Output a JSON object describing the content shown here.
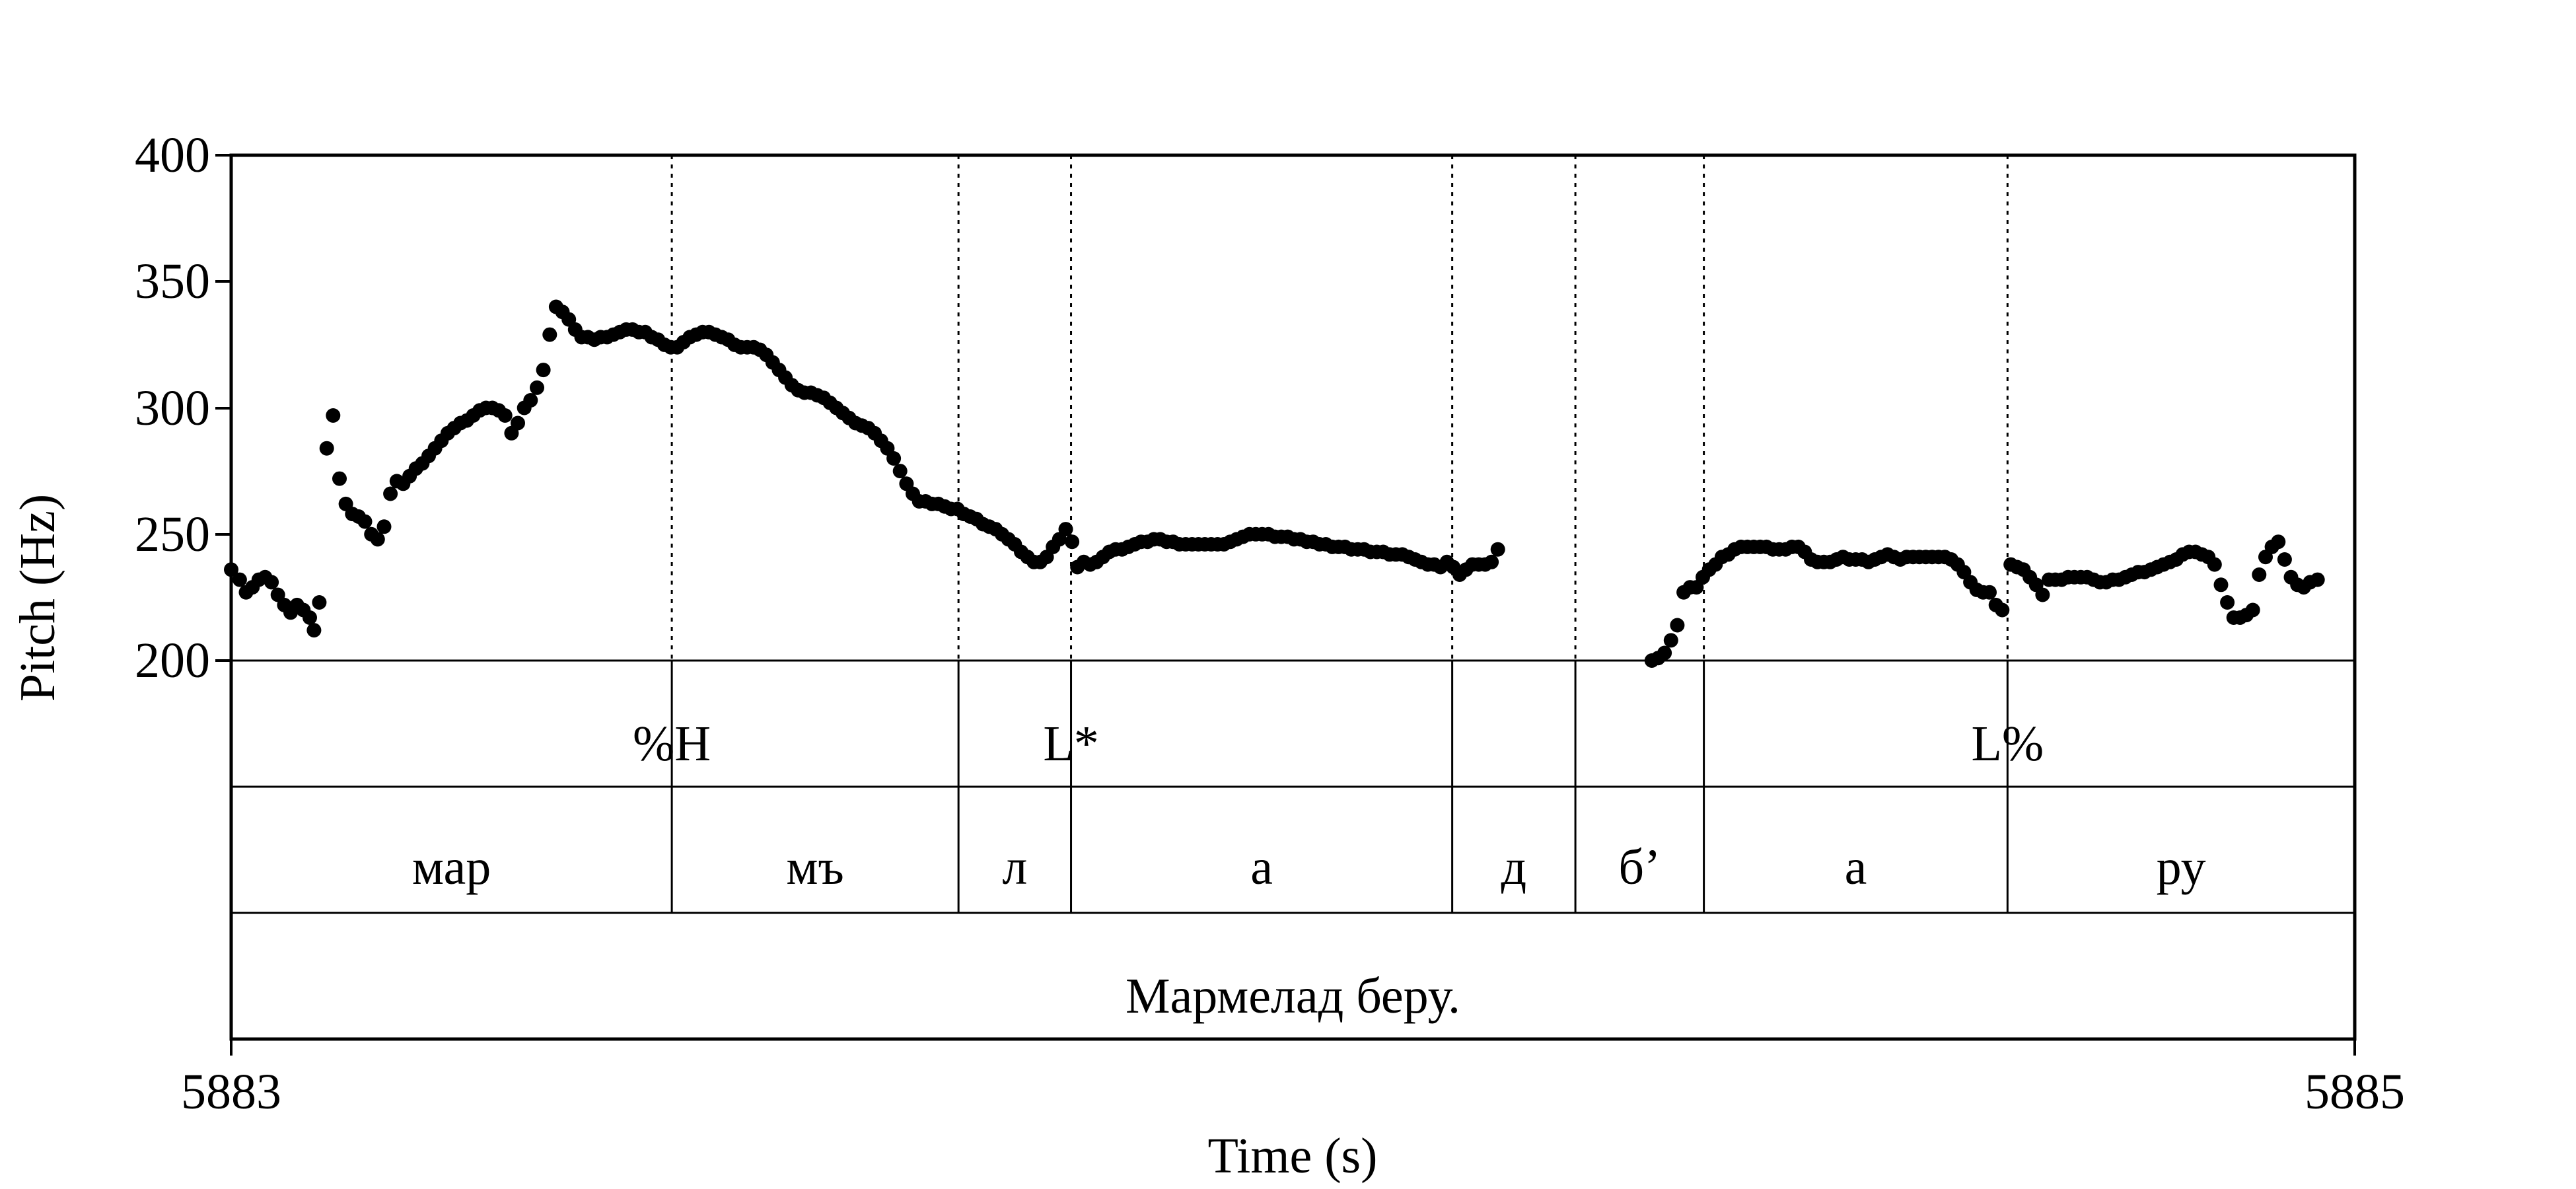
{
  "chart_data": {
    "type": "scatter",
    "xlabel": "Time (s)",
    "ylabel": "Pitch (Hz)",
    "xlim": [
      5883,
      5885
    ],
    "ylim": [
      200,
      400
    ],
    "x_tick_labels": [
      "5883",
      "5885"
    ],
    "y_tick_labels": [
      "200",
      "250",
      "300",
      "350",
      "400"
    ],
    "grid": false,
    "legend": "none",
    "tone_tier": [
      {
        "time": 5883.415,
        "label": "%H"
      },
      {
        "time": 5883.791,
        "label": "L*"
      },
      {
        "time": 5884.673,
        "label": "L%"
      }
    ],
    "boundaries": [
      5883.415,
      5883.685,
      5883.791,
      5884.15,
      5884.266,
      5884.387,
      5884.673
    ],
    "syllable_tier": [
      {
        "start": 5883.0,
        "end": 5883.415,
        "label": "мар"
      },
      {
        "start": 5883.415,
        "end": 5883.685,
        "label": "мъ"
      },
      {
        "start": 5883.685,
        "end": 5883.791,
        "label": "л"
      },
      {
        "start": 5883.791,
        "end": 5884.15,
        "label": "а"
      },
      {
        "start": 5884.15,
        "end": 5884.266,
        "label": "д"
      },
      {
        "start": 5884.266,
        "end": 5884.387,
        "label": "б’"
      },
      {
        "start": 5884.387,
        "end": 5884.673,
        "label": "а"
      },
      {
        "start": 5884.673,
        "end": 5885.0,
        "label": "ру"
      }
    ],
    "sentence_tier": {
      "start": 5883.0,
      "end": 5885.0,
      "label": "Мармелад беру."
    },
    "pitch_segments": [
      [
        [
          5883.0,
          236
        ],
        [
          5883.008,
          232
        ],
        [
          5883.014,
          227
        ],
        [
          5883.02,
          229
        ],
        [
          5883.026,
          232
        ],
        [
          5883.032,
          233
        ],
        [
          5883.038,
          231
        ],
        [
          5883.044,
          226
        ],
        [
          5883.05,
          222
        ],
        [
          5883.056,
          219
        ],
        [
          5883.062,
          222
        ],
        [
          5883.068,
          220
        ],
        [
          5883.074,
          217
        ],
        [
          5883.078,
          212
        ],
        [
          5883.083,
          223
        ]
      ],
      [
        [
          5883.09,
          284
        ],
        [
          5883.096,
          297
        ],
        [
          5883.102,
          272
        ],
        [
          5883.108,
          262
        ],
        [
          5883.114,
          258
        ],
        [
          5883.12,
          257
        ],
        [
          5883.126,
          255
        ],
        [
          5883.132,
          250
        ],
        [
          5883.138,
          248
        ],
        [
          5883.144,
          253
        ],
        [
          5883.15,
          266
        ],
        [
          5883.156,
          271
        ],
        [
          5883.162,
          270
        ],
        [
          5883.168,
          273
        ],
        [
          5883.174,
          276
        ],
        [
          5883.18,
          278
        ],
        [
          5883.186,
          281
        ],
        [
          5883.192,
          284
        ],
        [
          5883.198,
          287
        ],
        [
          5883.204,
          290
        ],
        [
          5883.21,
          292
        ],
        [
          5883.216,
          294
        ],
        [
          5883.222,
          295
        ],
        [
          5883.228,
          297
        ],
        [
          5883.234,
          299
        ],
        [
          5883.24,
          300
        ],
        [
          5883.246,
          300
        ],
        [
          5883.252,
          299
        ],
        [
          5883.258,
          297
        ],
        [
          5883.264,
          290
        ],
        [
          5883.27,
          294
        ],
        [
          5883.276,
          300
        ],
        [
          5883.282,
          303
        ],
        [
          5883.288,
          308
        ],
        [
          5883.294,
          315
        ],
        [
          5883.3,
          329
        ],
        [
          5883.306,
          340
        ],
        [
          5883.312,
          338
        ],
        [
          5883.318,
          335
        ],
        [
          5883.324,
          331
        ],
        [
          5883.33,
          328
        ],
        [
          5883.336,
          328
        ],
        [
          5883.342,
          327
        ],
        [
          5883.348,
          328
        ],
        [
          5883.354,
          328
        ],
        [
          5883.36,
          329
        ],
        [
          5883.366,
          330
        ],
        [
          5883.372,
          331
        ],
        [
          5883.378,
          331
        ],
        [
          5883.384,
          330
        ],
        [
          5883.39,
          330
        ],
        [
          5883.396,
          328
        ],
        [
          5883.402,
          327
        ],
        [
          5883.408,
          325
        ],
        [
          5883.414,
          324
        ],
        [
          5883.42,
          324
        ],
        [
          5883.426,
          326
        ],
        [
          5883.432,
          328
        ],
        [
          5883.438,
          329
        ],
        [
          5883.444,
          330
        ],
        [
          5883.45,
          330
        ],
        [
          5883.456,
          329
        ],
        [
          5883.462,
          328
        ],
        [
          5883.468,
          327
        ],
        [
          5883.474,
          325
        ],
        [
          5883.48,
          324
        ],
        [
          5883.486,
          324
        ],
        [
          5883.492,
          324
        ],
        [
          5883.498,
          323
        ],
        [
          5883.504,
          321
        ],
        [
          5883.51,
          318
        ],
        [
          5883.516,
          315
        ],
        [
          5883.522,
          312
        ],
        [
          5883.528,
          309
        ],
        [
          5883.534,
          307
        ],
        [
          5883.54,
          306
        ],
        [
          5883.546,
          306
        ],
        [
          5883.552,
          305
        ],
        [
          5883.558,
          304
        ],
        [
          5883.564,
          302
        ],
        [
          5883.57,
          300
        ],
        [
          5883.576,
          298
        ],
        [
          5883.582,
          296
        ],
        [
          5883.588,
          294
        ],
        [
          5883.594,
          293
        ],
        [
          5883.6,
          292
        ],
        [
          5883.606,
          290
        ],
        [
          5883.612,
          287
        ],
        [
          5883.618,
          284
        ],
        [
          5883.624,
          280
        ],
        [
          5883.63,
          275
        ],
        [
          5883.636,
          270
        ],
        [
          5883.642,
          266
        ],
        [
          5883.648,
          263
        ],
        [
          5883.654,
          263
        ],
        [
          5883.66,
          262
        ],
        [
          5883.666,
          262
        ],
        [
          5883.672,
          261
        ],
        [
          5883.678,
          260
        ],
        [
          5883.684,
          260
        ],
        [
          5883.69,
          258
        ],
        [
          5883.696,
          257
        ],
        [
          5883.702,
          256
        ],
        [
          5883.708,
          254
        ],
        [
          5883.714,
          253
        ],
        [
          5883.72,
          252
        ],
        [
          5883.726,
          250
        ],
        [
          5883.732,
          248
        ],
        [
          5883.738,
          246
        ],
        [
          5883.744,
          243
        ],
        [
          5883.75,
          241
        ],
        [
          5883.756,
          239
        ],
        [
          5883.762,
          239
        ],
        [
          5883.768,
          241
        ],
        [
          5883.774,
          245
        ],
        [
          5883.78,
          248
        ],
        [
          5883.786,
          252
        ],
        [
          5883.792,
          247
        ]
      ],
      [
        [
          5883.797,
          237
        ],
        [
          5883.803,
          239
        ],
        [
          5883.809,
          238
        ],
        [
          5883.815,
          239
        ],
        [
          5883.821,
          241
        ],
        [
          5883.827,
          243
        ],
        [
          5883.833,
          244
        ],
        [
          5883.839,
          244
        ],
        [
          5883.845,
          245
        ],
        [
          5883.851,
          246
        ],
        [
          5883.857,
          247
        ],
        [
          5883.863,
          247
        ],
        [
          5883.869,
          248
        ],
        [
          5883.875,
          248
        ],
        [
          5883.881,
          247
        ],
        [
          5883.887,
          247
        ],
        [
          5883.893,
          246
        ],
        [
          5883.899,
          246
        ],
        [
          5883.905,
          246
        ],
        [
          5883.911,
          246
        ],
        [
          5883.917,
          246
        ],
        [
          5883.923,
          246
        ],
        [
          5883.929,
          246
        ],
        [
          5883.935,
          246
        ],
        [
          5883.941,
          247
        ],
        [
          5883.947,
          248
        ],
        [
          5883.953,
          249
        ],
        [
          5883.959,
          250
        ],
        [
          5883.965,
          250
        ],
        [
          5883.971,
          250
        ],
        [
          5883.977,
          250
        ],
        [
          5883.983,
          249
        ],
        [
          5883.989,
          249
        ],
        [
          5883.995,
          249
        ],
        [
          5884.001,
          248
        ],
        [
          5884.007,
          248
        ],
        [
          5884.013,
          247
        ],
        [
          5884.019,
          247
        ],
        [
          5884.025,
          246
        ],
        [
          5884.031,
          246
        ],
        [
          5884.037,
          245
        ],
        [
          5884.043,
          245
        ],
        [
          5884.049,
          245
        ],
        [
          5884.055,
          244
        ],
        [
          5884.061,
          244
        ],
        [
          5884.067,
          244
        ],
        [
          5884.073,
          243
        ],
        [
          5884.079,
          243
        ],
        [
          5884.085,
          243
        ],
        [
          5884.091,
          242
        ],
        [
          5884.097,
          242
        ],
        [
          5884.103,
          242
        ],
        [
          5884.109,
          241
        ],
        [
          5884.115,
          240
        ],
        [
          5884.121,
          239
        ],
        [
          5884.127,
          238
        ],
        [
          5884.133,
          238
        ],
        [
          5884.139,
          237
        ],
        [
          5884.145,
          239
        ],
        [
          5884.151,
          237
        ],
        [
          5884.157,
          234
        ],
        [
          5884.163,
          236
        ],
        [
          5884.169,
          238
        ],
        [
          5884.175,
          238
        ],
        [
          5884.181,
          238
        ],
        [
          5884.187,
          239
        ],
        [
          5884.193,
          244
        ]
      ],
      [
        [
          5884.338,
          200
        ],
        [
          5884.344,
          201
        ],
        [
          5884.35,
          203
        ],
        [
          5884.356,
          208
        ],
        [
          5884.362,
          214
        ],
        [
          5884.368,
          227
        ],
        [
          5884.374,
          229
        ],
        [
          5884.38,
          229
        ],
        [
          5884.386,
          233
        ],
        [
          5884.392,
          236
        ],
        [
          5884.398,
          238
        ],
        [
          5884.404,
          241
        ],
        [
          5884.41,
          242
        ],
        [
          5884.416,
          244
        ],
        [
          5884.422,
          245
        ],
        [
          5884.428,
          245
        ],
        [
          5884.434,
          245
        ],
        [
          5884.44,
          245
        ],
        [
          5884.446,
          245
        ],
        [
          5884.452,
          244
        ],
        [
          5884.458,
          244
        ],
        [
          5884.464,
          244
        ],
        [
          5884.47,
          245
        ],
        [
          5884.476,
          245
        ],
        [
          5884.482,
          243
        ],
        [
          5884.488,
          240
        ],
        [
          5884.494,
          239
        ],
        [
          5884.5,
          239
        ],
        [
          5884.506,
          239
        ],
        [
          5884.512,
          240
        ],
        [
          5884.518,
          241
        ],
        [
          5884.524,
          240
        ],
        [
          5884.53,
          240
        ],
        [
          5884.536,
          240
        ],
        [
          5884.542,
          239
        ],
        [
          5884.548,
          240
        ],
        [
          5884.554,
          241
        ],
        [
          5884.56,
          242
        ],
        [
          5884.566,
          241
        ],
        [
          5884.572,
          240
        ],
        [
          5884.578,
          241
        ],
        [
          5884.584,
          241
        ],
        [
          5884.59,
          241
        ],
        [
          5884.596,
          241
        ],
        [
          5884.602,
          241
        ],
        [
          5884.608,
          241
        ],
        [
          5884.614,
          241
        ],
        [
          5884.62,
          240
        ],
        [
          5884.626,
          238
        ],
        [
          5884.632,
          235
        ],
        [
          5884.638,
          231
        ],
        [
          5884.644,
          228
        ],
        [
          5884.65,
          227
        ],
        [
          5884.656,
          227
        ],
        [
          5884.662,
          222
        ],
        [
          5884.668,
          220
        ]
      ],
      [
        [
          5884.676,
          238
        ],
        [
          5884.682,
          237
        ],
        [
          5884.688,
          236
        ],
        [
          5884.694,
          233
        ],
        [
          5884.7,
          230
        ],
        [
          5884.706,
          226
        ],
        [
          5884.712,
          232
        ],
        [
          5884.718,
          232
        ],
        [
          5884.724,
          232
        ],
        [
          5884.73,
          233
        ],
        [
          5884.736,
          233
        ],
        [
          5884.742,
          233
        ],
        [
          5884.748,
          233
        ],
        [
          5884.754,
          232
        ],
        [
          5884.76,
          231
        ],
        [
          5884.766,
          231
        ],
        [
          5884.772,
          232
        ],
        [
          5884.778,
          232
        ],
        [
          5884.784,
          233
        ],
        [
          5884.79,
          234
        ],
        [
          5884.796,
          235
        ],
        [
          5884.802,
          235
        ],
        [
          5884.808,
          236
        ],
        [
          5884.814,
          237
        ],
        [
          5884.82,
          238
        ],
        [
          5884.826,
          239
        ],
        [
          5884.832,
          240
        ],
        [
          5884.838,
          242
        ],
        [
          5884.844,
          243
        ],
        [
          5884.85,
          243
        ],
        [
          5884.856,
          242
        ],
        [
          5884.862,
          241
        ],
        [
          5884.868,
          238
        ],
        [
          5884.874,
          230
        ],
        [
          5884.88,
          223
        ],
        [
          5884.886,
          217
        ],
        [
          5884.892,
          217
        ],
        [
          5884.898,
          218
        ],
        [
          5884.904,
          220
        ],
        [
          5884.91,
          234
        ],
        [
          5884.916,
          241
        ],
        [
          5884.922,
          245
        ],
        [
          5884.928,
          247
        ],
        [
          5884.934,
          240
        ],
        [
          5884.94,
          233
        ],
        [
          5884.946,
          230
        ],
        [
          5884.952,
          229
        ],
        [
          5884.958,
          231
        ],
        [
          5884.965,
          232
        ]
      ]
    ]
  }
}
